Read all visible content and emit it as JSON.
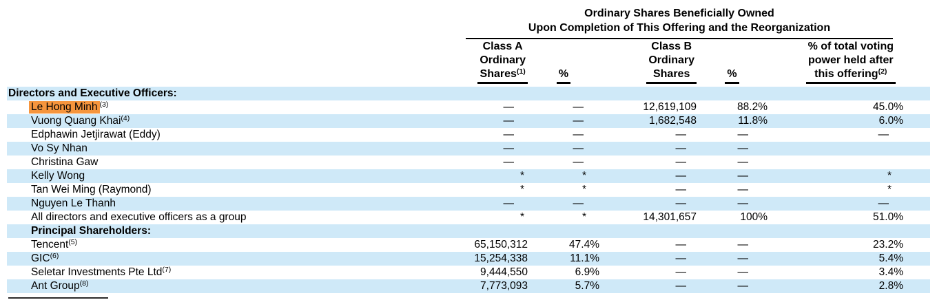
{
  "title": {
    "line1": "Ordinary Shares Beneficially Owned",
    "line2": "Upon Completion of This Offering and the Reorganization"
  },
  "columns": [
    {
      "id": "class-a-shares",
      "lines": [
        "Class A",
        "Ordinary",
        "Shares"
      ],
      "sup": "(1)"
    },
    {
      "id": "class-a-percent",
      "lines": [
        "%"
      ],
      "sup": ""
    },
    {
      "id": "class-b-shares",
      "lines": [
        "Class B",
        "Ordinary",
        "Shares"
      ],
      "sup": ""
    },
    {
      "id": "class-b-percent",
      "lines": [
        "%"
      ],
      "sup": ""
    },
    {
      "id": "voting-power",
      "lines": [
        "% of total voting",
        "power held after",
        "this offering"
      ],
      "sup": "(2)"
    }
  ],
  "rows": [
    {
      "name": "Directors and Executive Officers:",
      "sup": "",
      "bold": true,
      "indent": 0,
      "highlight": false,
      "values": [
        "",
        "",
        "",
        "",
        ""
      ]
    },
    {
      "name": "Le Hong Minh",
      "sup": "(3)",
      "bold": false,
      "indent": 1,
      "highlight": true,
      "values": [
        "—",
        "—",
        "12,619,109",
        "88.2%",
        "45.0%"
      ]
    },
    {
      "name": "Vuong Quang Khai",
      "sup": "(4)",
      "bold": false,
      "indent": 1,
      "highlight": false,
      "values": [
        "—",
        "—",
        "1,682,548",
        "11.8%",
        "6.0%"
      ]
    },
    {
      "name": "Edphawin Jetjirawat (Eddy)",
      "sup": "",
      "bold": false,
      "indent": 1,
      "highlight": false,
      "values": [
        "—",
        "—",
        "—",
        "—",
        "—"
      ]
    },
    {
      "name": "Vo Sy Nhan",
      "sup": "",
      "bold": false,
      "indent": 1,
      "highlight": false,
      "values": [
        "—",
        "—",
        "—",
        "—",
        ""
      ]
    },
    {
      "name": "Christina Gaw",
      "sup": "",
      "bold": false,
      "indent": 1,
      "highlight": false,
      "values": [
        "—",
        "—",
        "—",
        "—",
        ""
      ]
    },
    {
      "name": "Kelly Wong",
      "sup": "",
      "bold": false,
      "indent": 1,
      "highlight": false,
      "values": [
        "*",
        "*",
        "—",
        "—",
        "*"
      ]
    },
    {
      "name": "Tan Wei Ming (Raymond)",
      "sup": "",
      "bold": false,
      "indent": 1,
      "highlight": false,
      "values": [
        "*",
        "*",
        "—",
        "—",
        "*"
      ]
    },
    {
      "name": "Nguyen Le Thanh",
      "sup": "",
      "bold": false,
      "indent": 1,
      "highlight": false,
      "values": [
        "—",
        "—",
        "—",
        "—",
        "—"
      ]
    },
    {
      "name": "All directors and executive officers as a group",
      "sup": "",
      "bold": false,
      "indent": 1,
      "highlight": false,
      "values": [
        "*",
        "*",
        "14,301,657",
        "100%",
        "51.0%"
      ]
    },
    {
      "name": "Principal Shareholders:",
      "sup": "",
      "bold": true,
      "indent": 1,
      "highlight": false,
      "values": [
        "",
        "",
        "",
        "",
        ""
      ]
    },
    {
      "name": "Tencent",
      "sup": "(5)",
      "bold": false,
      "indent": 1,
      "highlight": false,
      "values": [
        "65,150,312",
        "47.4%",
        "—",
        "—",
        "23.2%"
      ]
    },
    {
      "name": "GIC",
      "sup": "(6)",
      "bold": false,
      "indent": 1,
      "highlight": false,
      "values": [
        "15,254,338",
        "11.1%",
        "—",
        "—",
        "5.4%"
      ]
    },
    {
      "name": "Seletar Investments Pte Ltd",
      "sup": "(7)",
      "bold": false,
      "indent": 1,
      "highlight": false,
      "values": [
        "9,444,550",
        "6.9%",
        "—",
        "—",
        "3.4%"
      ]
    },
    {
      "name": "Ant Group",
      "sup": "(8)",
      "bold": false,
      "indent": 1,
      "highlight": false,
      "values": [
        "7,773,093",
        "5.7%",
        "—",
        "—",
        "2.8%"
      ]
    }
  ],
  "colors": {
    "row_stripe_blue": "#cfe9f8",
    "highlight_orange": "#f6953d",
    "text": "#000000"
  }
}
